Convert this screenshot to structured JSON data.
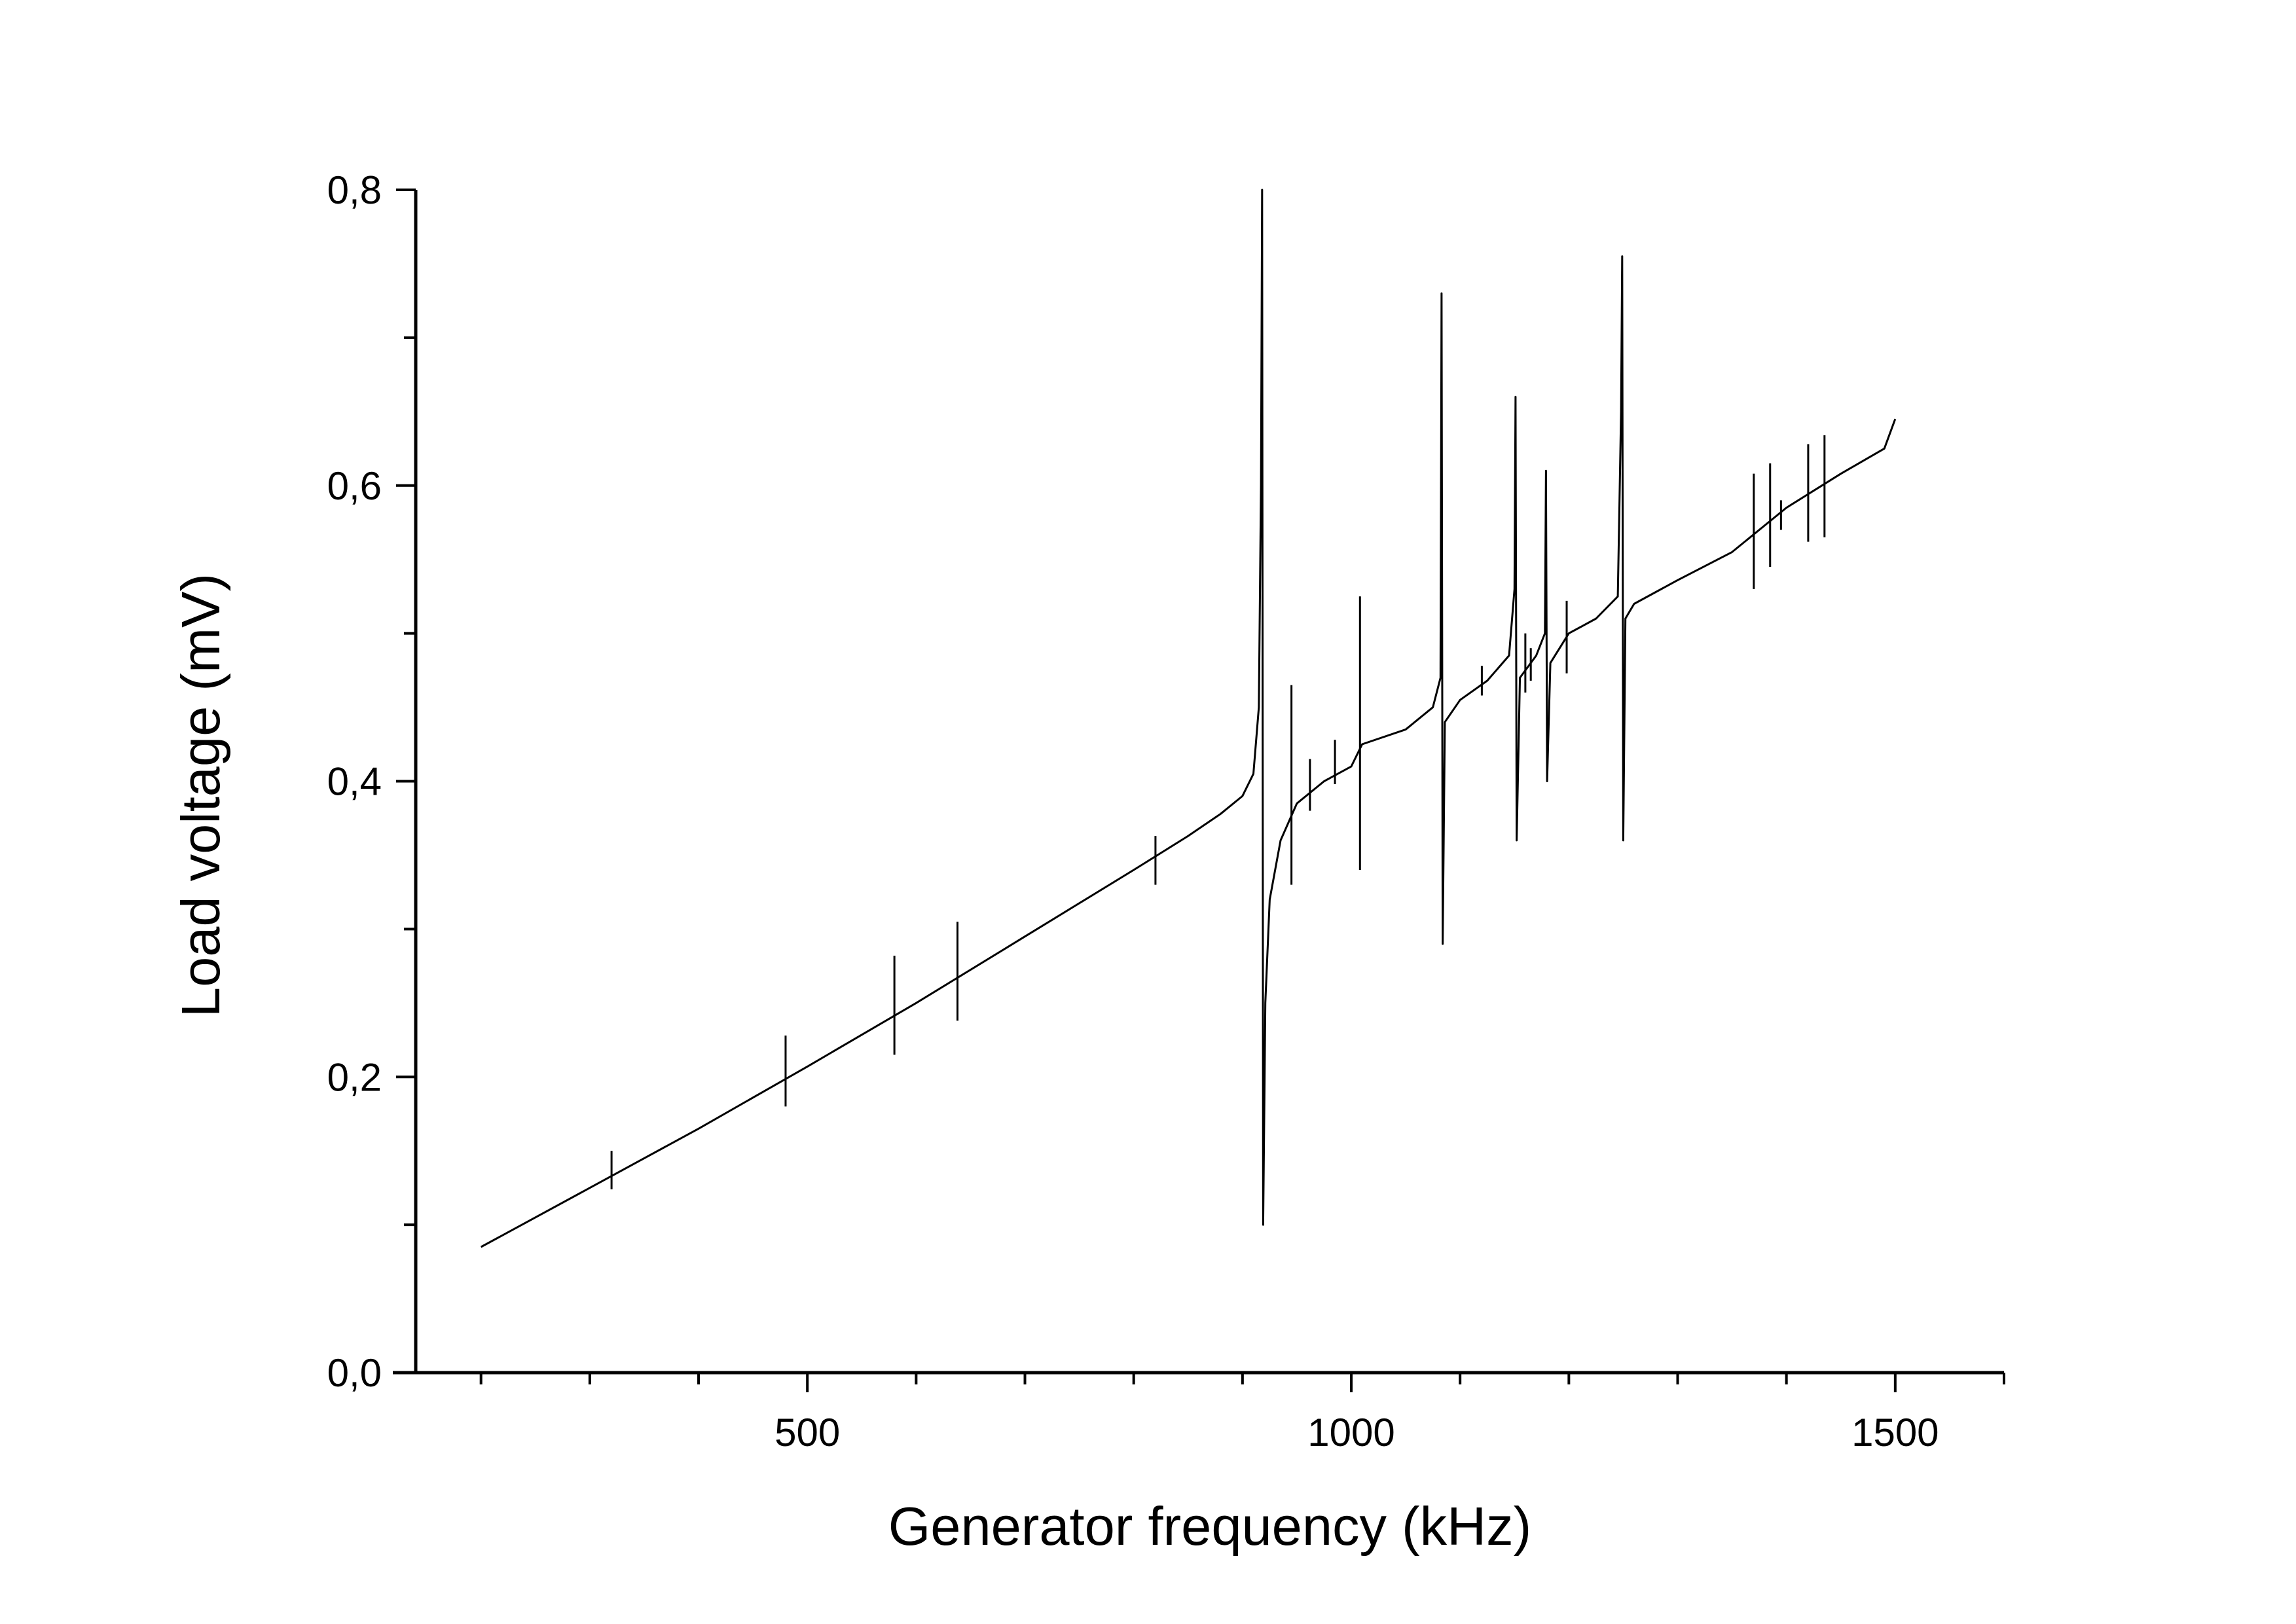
{
  "chart_data": {
    "type": "line",
    "title": "",
    "xlabel": "Generator frequency (kHz)",
    "ylabel": "Load voltage (mV)",
    "xlim": [
      140,
      1600
    ],
    "ylim": [
      0.0,
      0.8
    ],
    "grid": false,
    "legend": "none",
    "x_ticks": [
      {
        "value": 500,
        "label": "500"
      },
      {
        "value": 1000,
        "label": "1000"
      },
      {
        "value": 1500,
        "label": "1500"
      }
    ],
    "x_minor_ticks": [
      200,
      300,
      400,
      600,
      700,
      800,
      900,
      1100,
      1200,
      1300,
      1400,
      1600
    ],
    "y_ticks": [
      {
        "value": 0.0,
        "label": "0,0"
      },
      {
        "value": 0.2,
        "label": "0,2"
      },
      {
        "value": 0.4,
        "label": "0,4"
      },
      {
        "value": 0.6,
        "label": "0,6"
      },
      {
        "value": 0.8,
        "label": "0,8"
      }
    ],
    "y_minor_ticks": [
      0.1,
      0.3,
      0.5,
      0.7
    ],
    "series": [
      {
        "color": "#000000",
        "points": [
          [
            200,
            0.085
          ],
          [
            300,
            0.125
          ],
          [
            400,
            0.165
          ],
          [
            500,
            0.207
          ],
          [
            600,
            0.25
          ],
          [
            700,
            0.295
          ],
          [
            800,
            0.34
          ],
          [
            850,
            0.363
          ],
          [
            880,
            0.378
          ],
          [
            900,
            0.39
          ],
          [
            910,
            0.405
          ],
          [
            915,
            0.45
          ],
          [
            917,
            0.6
          ],
          [
            918,
            0.8
          ],
          [
            919,
            0.1
          ],
          [
            921,
            0.25
          ],
          [
            925,
            0.32
          ],
          [
            935,
            0.36
          ],
          [
            950,
            0.385
          ],
          [
            975,
            0.4
          ],
          [
            1000,
            0.41
          ],
          [
            1010,
            0.425
          ],
          [
            1050,
            0.435
          ],
          [
            1075,
            0.45
          ],
          [
            1082,
            0.47
          ],
          [
            1083,
            0.73
          ],
          [
            1084,
            0.29
          ],
          [
            1086,
            0.44
          ],
          [
            1100,
            0.455
          ],
          [
            1125,
            0.468
          ],
          [
            1145,
            0.485
          ],
          [
            1150,
            0.53
          ],
          [
            1151,
            0.66
          ],
          [
            1152,
            0.36
          ],
          [
            1155,
            0.47
          ],
          [
            1170,
            0.485
          ],
          [
            1178,
            0.5
          ],
          [
            1179,
            0.61
          ],
          [
            1180,
            0.4
          ],
          [
            1183,
            0.48
          ],
          [
            1200,
            0.5
          ],
          [
            1225,
            0.51
          ],
          [
            1245,
            0.525
          ],
          [
            1248,
            0.65
          ],
          [
            1249,
            0.755
          ],
          [
            1250,
            0.36
          ],
          [
            1252,
            0.51
          ],
          [
            1260,
            0.52
          ],
          [
            1300,
            0.536
          ],
          [
            1350,
            0.555
          ],
          [
            1400,
            0.585
          ],
          [
            1450,
            0.608
          ],
          [
            1490,
            0.625
          ],
          [
            1500,
            0.645
          ]
        ]
      }
    ],
    "spikes": [
      {
        "x": 320,
        "high": 0.15,
        "low": 0.124
      },
      {
        "x": 480,
        "high": 0.228,
        "low": 0.18
      },
      {
        "x": 580,
        "high": 0.282,
        "low": 0.215
      },
      {
        "x": 638,
        "high": 0.305,
        "low": 0.238
      },
      {
        "x": 820,
        "high": 0.363,
        "low": 0.33
      },
      {
        "x": 945,
        "high": 0.465,
        "low": 0.33
      },
      {
        "x": 962,
        "high": 0.415,
        "low": 0.38
      },
      {
        "x": 985,
        "high": 0.428,
        "low": 0.398
      },
      {
        "x": 1008,
        "high": 0.525,
        "low": 0.34
      },
      {
        "x": 1120,
        "high": 0.478,
        "low": 0.458
      },
      {
        "x": 1160,
        "high": 0.5,
        "low": 0.46
      },
      {
        "x": 1165,
        "high": 0.49,
        "low": 0.468
      },
      {
        "x": 1198,
        "high": 0.522,
        "low": 0.473
      },
      {
        "x": 1370,
        "high": 0.608,
        "low": 0.53
      },
      {
        "x": 1385,
        "high": 0.615,
        "low": 0.545
      },
      {
        "x": 1395,
        "high": 0.59,
        "low": 0.57
      },
      {
        "x": 1420,
        "high": 0.628,
        "low": 0.562
      },
      {
        "x": 1435,
        "high": 0.634,
        "low": 0.565
      }
    ]
  }
}
